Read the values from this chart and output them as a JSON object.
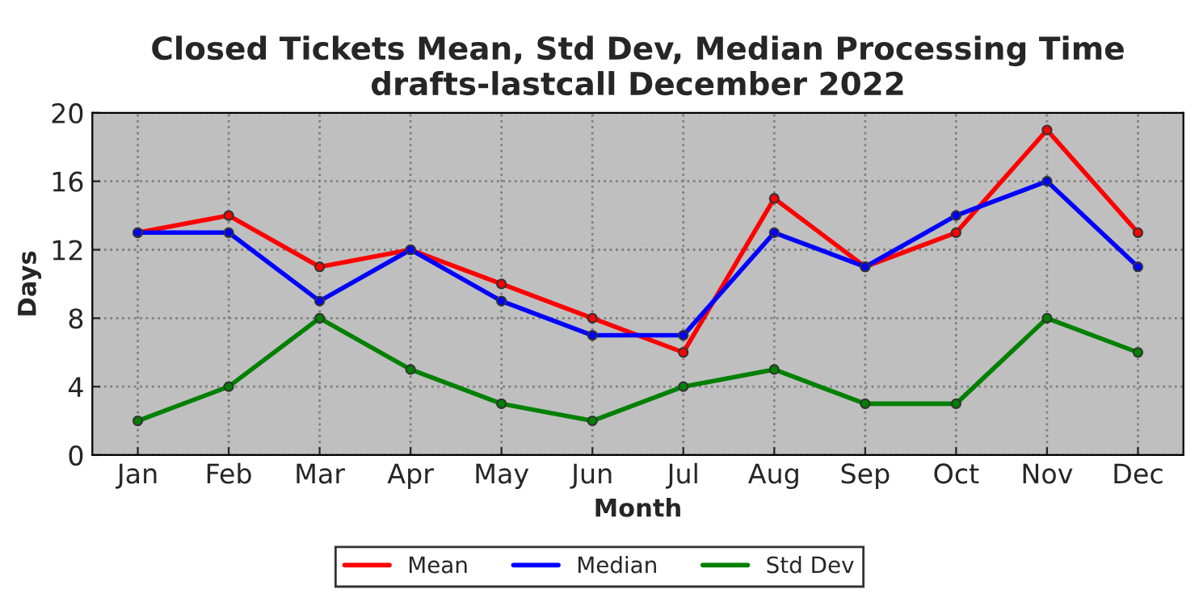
{
  "chart_data": {
    "type": "line",
    "title": "Closed Tickets Mean, Std Dev, Median Processing Time\ndrafts-lastcall December 2022",
    "xlabel": "Month",
    "ylabel": "Days",
    "categories": [
      "Jan",
      "Feb",
      "Mar",
      "Apr",
      "May",
      "Jun",
      "Jul",
      "Aug",
      "Sep",
      "Oct",
      "Nov",
      "Dec"
    ],
    "series": [
      {
        "name": "Mean",
        "color": "#ff0000",
        "values": [
          13,
          14,
          11,
          12,
          10,
          8,
          6,
          15,
          11,
          13,
          19,
          13
        ]
      },
      {
        "name": "Median",
        "color": "#0000ff",
        "values": [
          13,
          13,
          9,
          12,
          9,
          7,
          7,
          13,
          11,
          14,
          16,
          11
        ]
      },
      {
        "name": "Std Dev",
        "color": "#008000",
        "values": [
          2,
          4,
          8,
          5,
          3,
          2,
          4,
          5,
          3,
          3,
          8,
          6
        ]
      }
    ],
    "ylim": [
      0,
      20
    ],
    "yticks": [
      0,
      4,
      8,
      12,
      16,
      20
    ],
    "grid": true,
    "legend": "bottom",
    "marker": "circle",
    "line_style": "solid"
  }
}
